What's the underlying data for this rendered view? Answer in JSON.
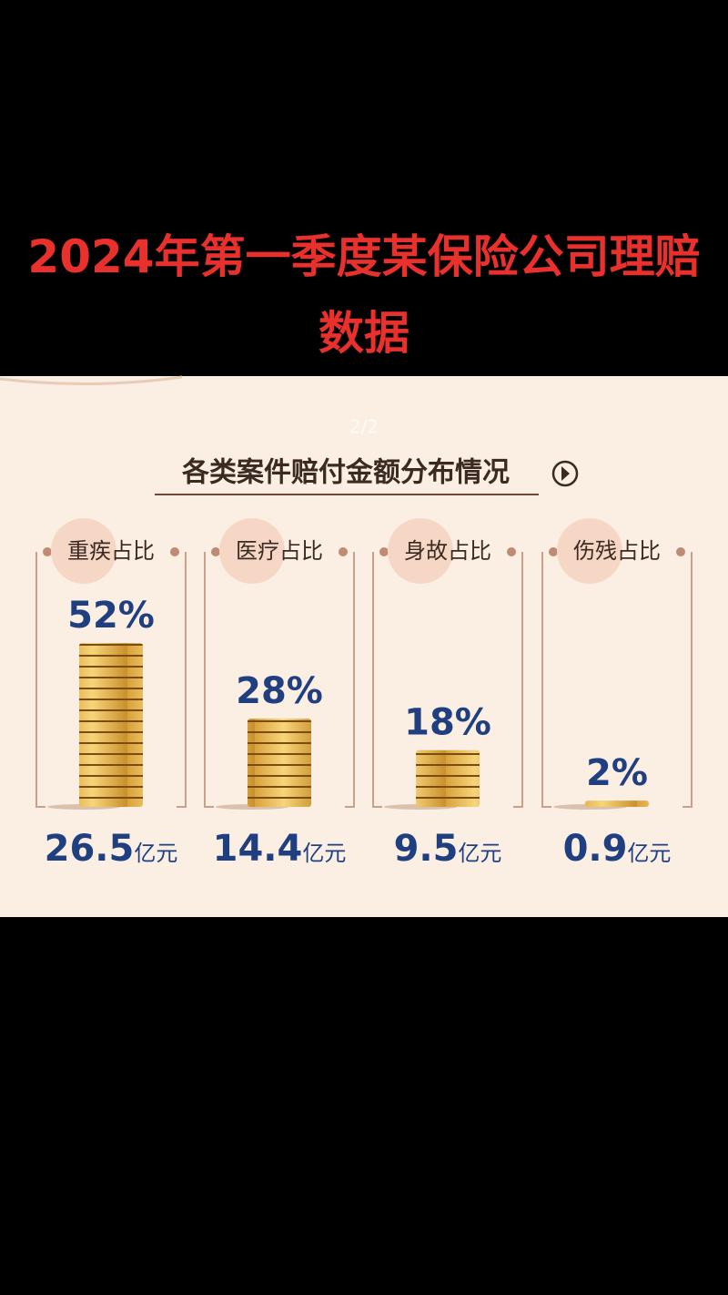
{
  "header": {
    "title": "2024年第一季度某保险公司理赔数据"
  },
  "chart_data": {
    "type": "coin-stack",
    "page_indicator": "2/2",
    "title": "各类案件赔付金额分布情况",
    "categories": [
      "重疾占比",
      "医疗占比",
      "身故占比",
      "伤残占比"
    ],
    "values": [
      52,
      28,
      18,
      2
    ],
    "value_labels": [
      "52%",
      "28%",
      "18%",
      "2%"
    ],
    "amounts": [
      26.5,
      14.4,
      9.5,
      0.9
    ],
    "amount_unit": "亿元",
    "color": "#e8b84a",
    "label_color": "#1f3f80"
  }
}
